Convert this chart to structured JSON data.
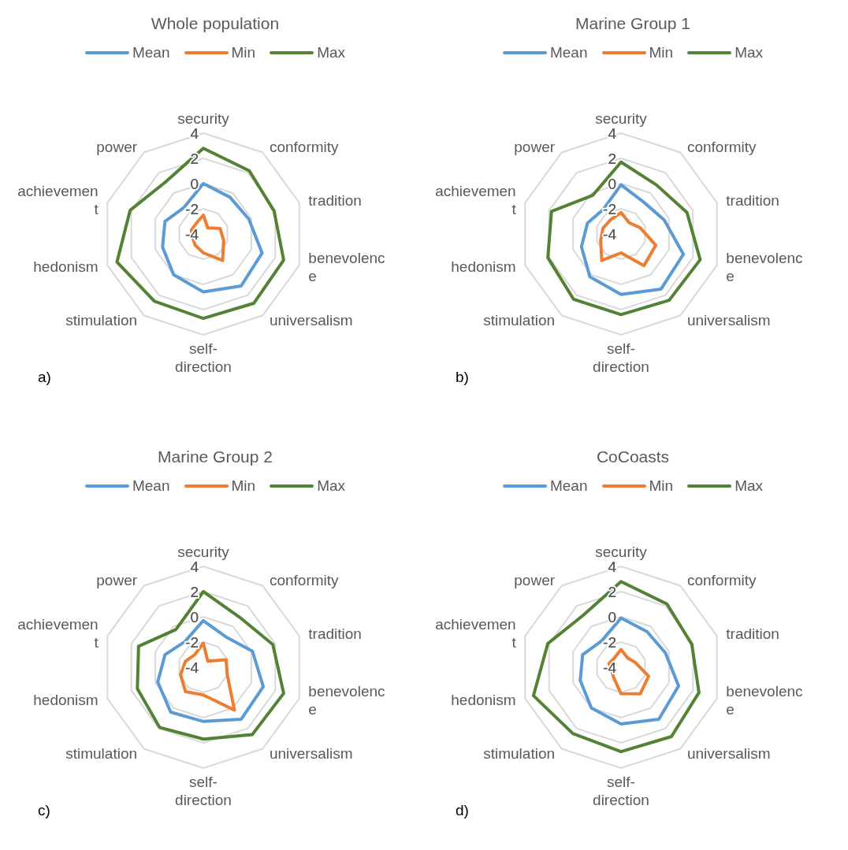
{
  "chart_data": [
    {
      "type": "radar",
      "title": "Whole population",
      "categories": [
        "security",
        "conformity",
        "tradition",
        "benevolence",
        "universalism",
        "self-direction",
        "stimulation",
        "hedonism",
        "achievement",
        "power"
      ],
      "ylim": [
        -4,
        4
      ],
      "yticks": [
        -4,
        -2,
        0,
        2,
        4
      ],
      "legend": "top",
      "grid": true,
      "annotations": [
        "a)"
      ],
      "series": [
        {
          "name": "Mean",
          "color": "#5b9bd5",
          "values": [
            0,
            -0.4,
            -0.2,
            0.9,
            1.1,
            0.6,
            0,
            -0.6,
            -0.8,
            -1.4
          ]
        },
        {
          "name": "Min",
          "color": "#ed7d31",
          "values": [
            -2.5,
            -3.4,
            -2.6,
            -2.3,
            -1.4,
            -2.5,
            -2.9,
            -3.1,
            -3,
            -3
          ]
        },
        {
          "name": "Max",
          "color": "#548235",
          "values": [
            2.8,
            2.2,
            1.9,
            2.7,
            2.8,
            2.7,
            2.6,
            3.2,
            2.1,
            1.1
          ]
        }
      ]
    },
    {
      "type": "radar",
      "title": "Marine Group 1",
      "categories": [
        "security",
        "conformity",
        "tradition",
        "benevolence",
        "universalism",
        "self-direction",
        "stimulation",
        "hedonism",
        "achievement",
        "power"
      ],
      "ylim": [
        -4,
        4
      ],
      "yticks": [
        -4,
        -2,
        0,
        2,
        4
      ],
      "legend": "top",
      "grid": true,
      "annotations": [
        "b)"
      ],
      "series": [
        {
          "name": "Mean",
          "color": "#5b9bd5",
          "values": [
            -0.1,
            -0.9,
            -0.4,
            1.2,
            1.4,
            0.8,
            0.2,
            -0.7,
            -1.2,
            -1.6
          ]
        },
        {
          "name": "Min",
          "color": "#ed7d31",
          "values": [
            -2.3,
            -2.9,
            -2.4,
            -1.1,
            -0.9,
            -2.5,
            -1.4,
            -2.3,
            -2.5,
            -2.6
          ]
        },
        {
          "name": "Max",
          "color": "#548235",
          "values": [
            1.7,
            0.8,
            1.5,
            2.6,
            2.5,
            2.4,
            2.4,
            2.1,
            1.8,
            -0.2
          ]
        }
      ]
    },
    {
      "type": "radar",
      "title": "Marine Group 2",
      "categories": [
        "security",
        "conformity",
        "tradition",
        "benevolence",
        "universalism",
        "self-direction",
        "stimulation",
        "hedonism",
        "achievement",
        "power"
      ],
      "ylim": [
        -4,
        4
      ],
      "yticks": [
        -4,
        -2,
        0,
        2,
        4
      ],
      "legend": "top",
      "grid": true,
      "annotations": [
        "c)"
      ],
      "series": [
        {
          "name": "Mean",
          "color": "#5b9bd5",
          "values": [
            -0.3,
            -1,
            0.1,
            1,
            1.1,
            0.3,
            0.4,
            -0.2,
            -0.8,
            -1.5
          ]
        },
        {
          "name": "Min",
          "color": "#ed7d31",
          "values": [
            -2.1,
            -3.4,
            -2.1,
            -2,
            0.2,
            -1.8,
            -1.6,
            -2.1,
            -2.5,
            -2.8
          ]
        },
        {
          "name": "Max",
          "color": "#548235",
          "values": [
            2,
            0.9,
            1.8,
            2.7,
            2.6,
            1.7,
            1.9,
            1.5,
            1.4,
            -0.3
          ]
        }
      ]
    },
    {
      "type": "radar",
      "title": "CoCoasts",
      "categories": [
        "security",
        "conformity",
        "tradition",
        "benevolence",
        "universalism",
        "self-direction",
        "stimulation",
        "hedonism",
        "achievement",
        "power"
      ],
      "ylim": [
        -4,
        4
      ],
      "yticks": [
        -4,
        -2,
        0,
        2,
        4
      ],
      "legend": "top",
      "grid": true,
      "annotations": [
        "d)"
      ],
      "series": [
        {
          "name": "Mean",
          "color": "#5b9bd5",
          "values": [
            -0.1,
            -0.5,
            -0.3,
            0.8,
            1.1,
            0.5,
            0,
            -0.6,
            -0.8,
            -1.4
          ]
        },
        {
          "name": "Min",
          "color": "#ed7d31",
          "values": [
            -2.6,
            -3.1,
            -2.8,
            -1.7,
            -1.4,
            -1.9,
            -3,
            -3.2,
            -3,
            -3.1
          ]
        },
        {
          "name": "Max",
          "color": "#548235",
          "values": [
            2.8,
            2.2,
            1.9,
            2.5,
            2.8,
            2.7,
            2.5,
            3.3,
            2.1,
            1.1
          ]
        }
      ]
    }
  ]
}
